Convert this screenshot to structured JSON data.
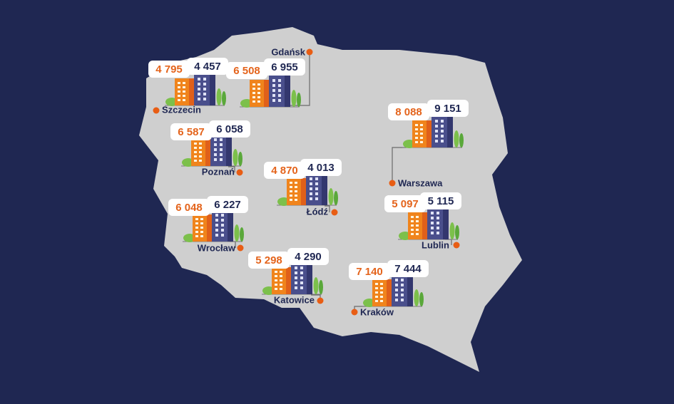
{
  "cities": [
    {
      "name": "Szczecin",
      "orange": "4 795",
      "navy": "4 457"
    },
    {
      "name": "Gdańsk",
      "orange": "6 508",
      "navy": "6 955"
    },
    {
      "name": "Poznań",
      "orange": "6 587",
      "navy": "6 058"
    },
    {
      "name": "Warszawa",
      "orange": "8 088",
      "navy": "9 151"
    },
    {
      "name": "Łódź",
      "orange": "4 870",
      "navy": "4 013"
    },
    {
      "name": "Wrocław",
      "orange": "6 048",
      "navy": "6 227"
    },
    {
      "name": "Lublin",
      "orange": "5 097",
      "navy": "5 115"
    },
    {
      "name": "Katowice",
      "orange": "5 298",
      "navy": "4 290"
    },
    {
      "name": "Kraków",
      "orange": "7 140",
      "navy": "7 444"
    }
  ]
}
